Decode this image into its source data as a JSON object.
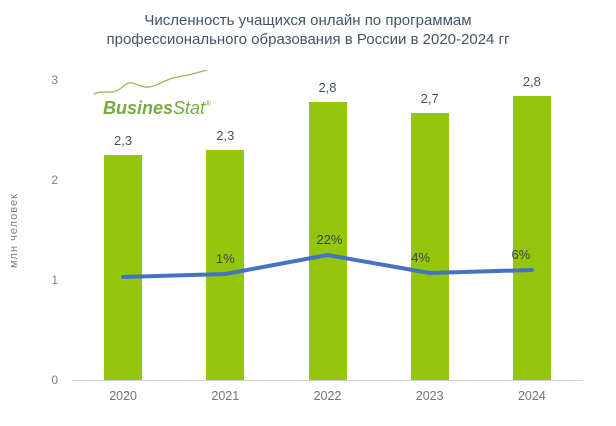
{
  "title": {
    "line1": "Численность учащихся онлайн по программам",
    "line2": "профессионального образования в России в 2020-2024 гг"
  },
  "logo": {
    "bold": "Busines",
    "light": "Stat",
    "registered": "®"
  },
  "y_axis": {
    "label": "млн человек"
  },
  "chart_data": {
    "type": "bar",
    "title": "Численность учащихся онлайн по программам профессионального образования в России в 2020-2024 гг",
    "categories": [
      "2020",
      "2021",
      "2022",
      "2023",
      "2024"
    ],
    "series": [
      {
        "type": "bar",
        "values": [
          2.25,
          2.3,
          2.78,
          2.67,
          2.84
        ],
        "labels": [
          "2,3",
          "2,3",
          "2,8",
          "2,7",
          "2,8"
        ],
        "color": "#94C60C"
      },
      {
        "type": "line",
        "labels": [
          "",
          "1%",
          "22%",
          "4%",
          "6%"
        ],
        "values_primary_axis_estimate": [
          1.03,
          1.06,
          1.25,
          1.07,
          1.1
        ],
        "color": "#4472C4"
      }
    ],
    "ylabel": "млн человек",
    "ylim": [
      0,
      3
    ],
    "yticks": [
      "0",
      "1",
      "2",
      "3"
    ],
    "grid": false,
    "legend": "none",
    "colors": {
      "bar": "#94C60C",
      "line": "#4472C4",
      "title_text": "#44546A",
      "axis_ticks": "#7F7F7F",
      "axis_line": "#D4D4D4",
      "value_labels": "#44546A",
      "percent_labels": "#3F4443",
      "logo_green": "#76AC3F"
    }
  }
}
